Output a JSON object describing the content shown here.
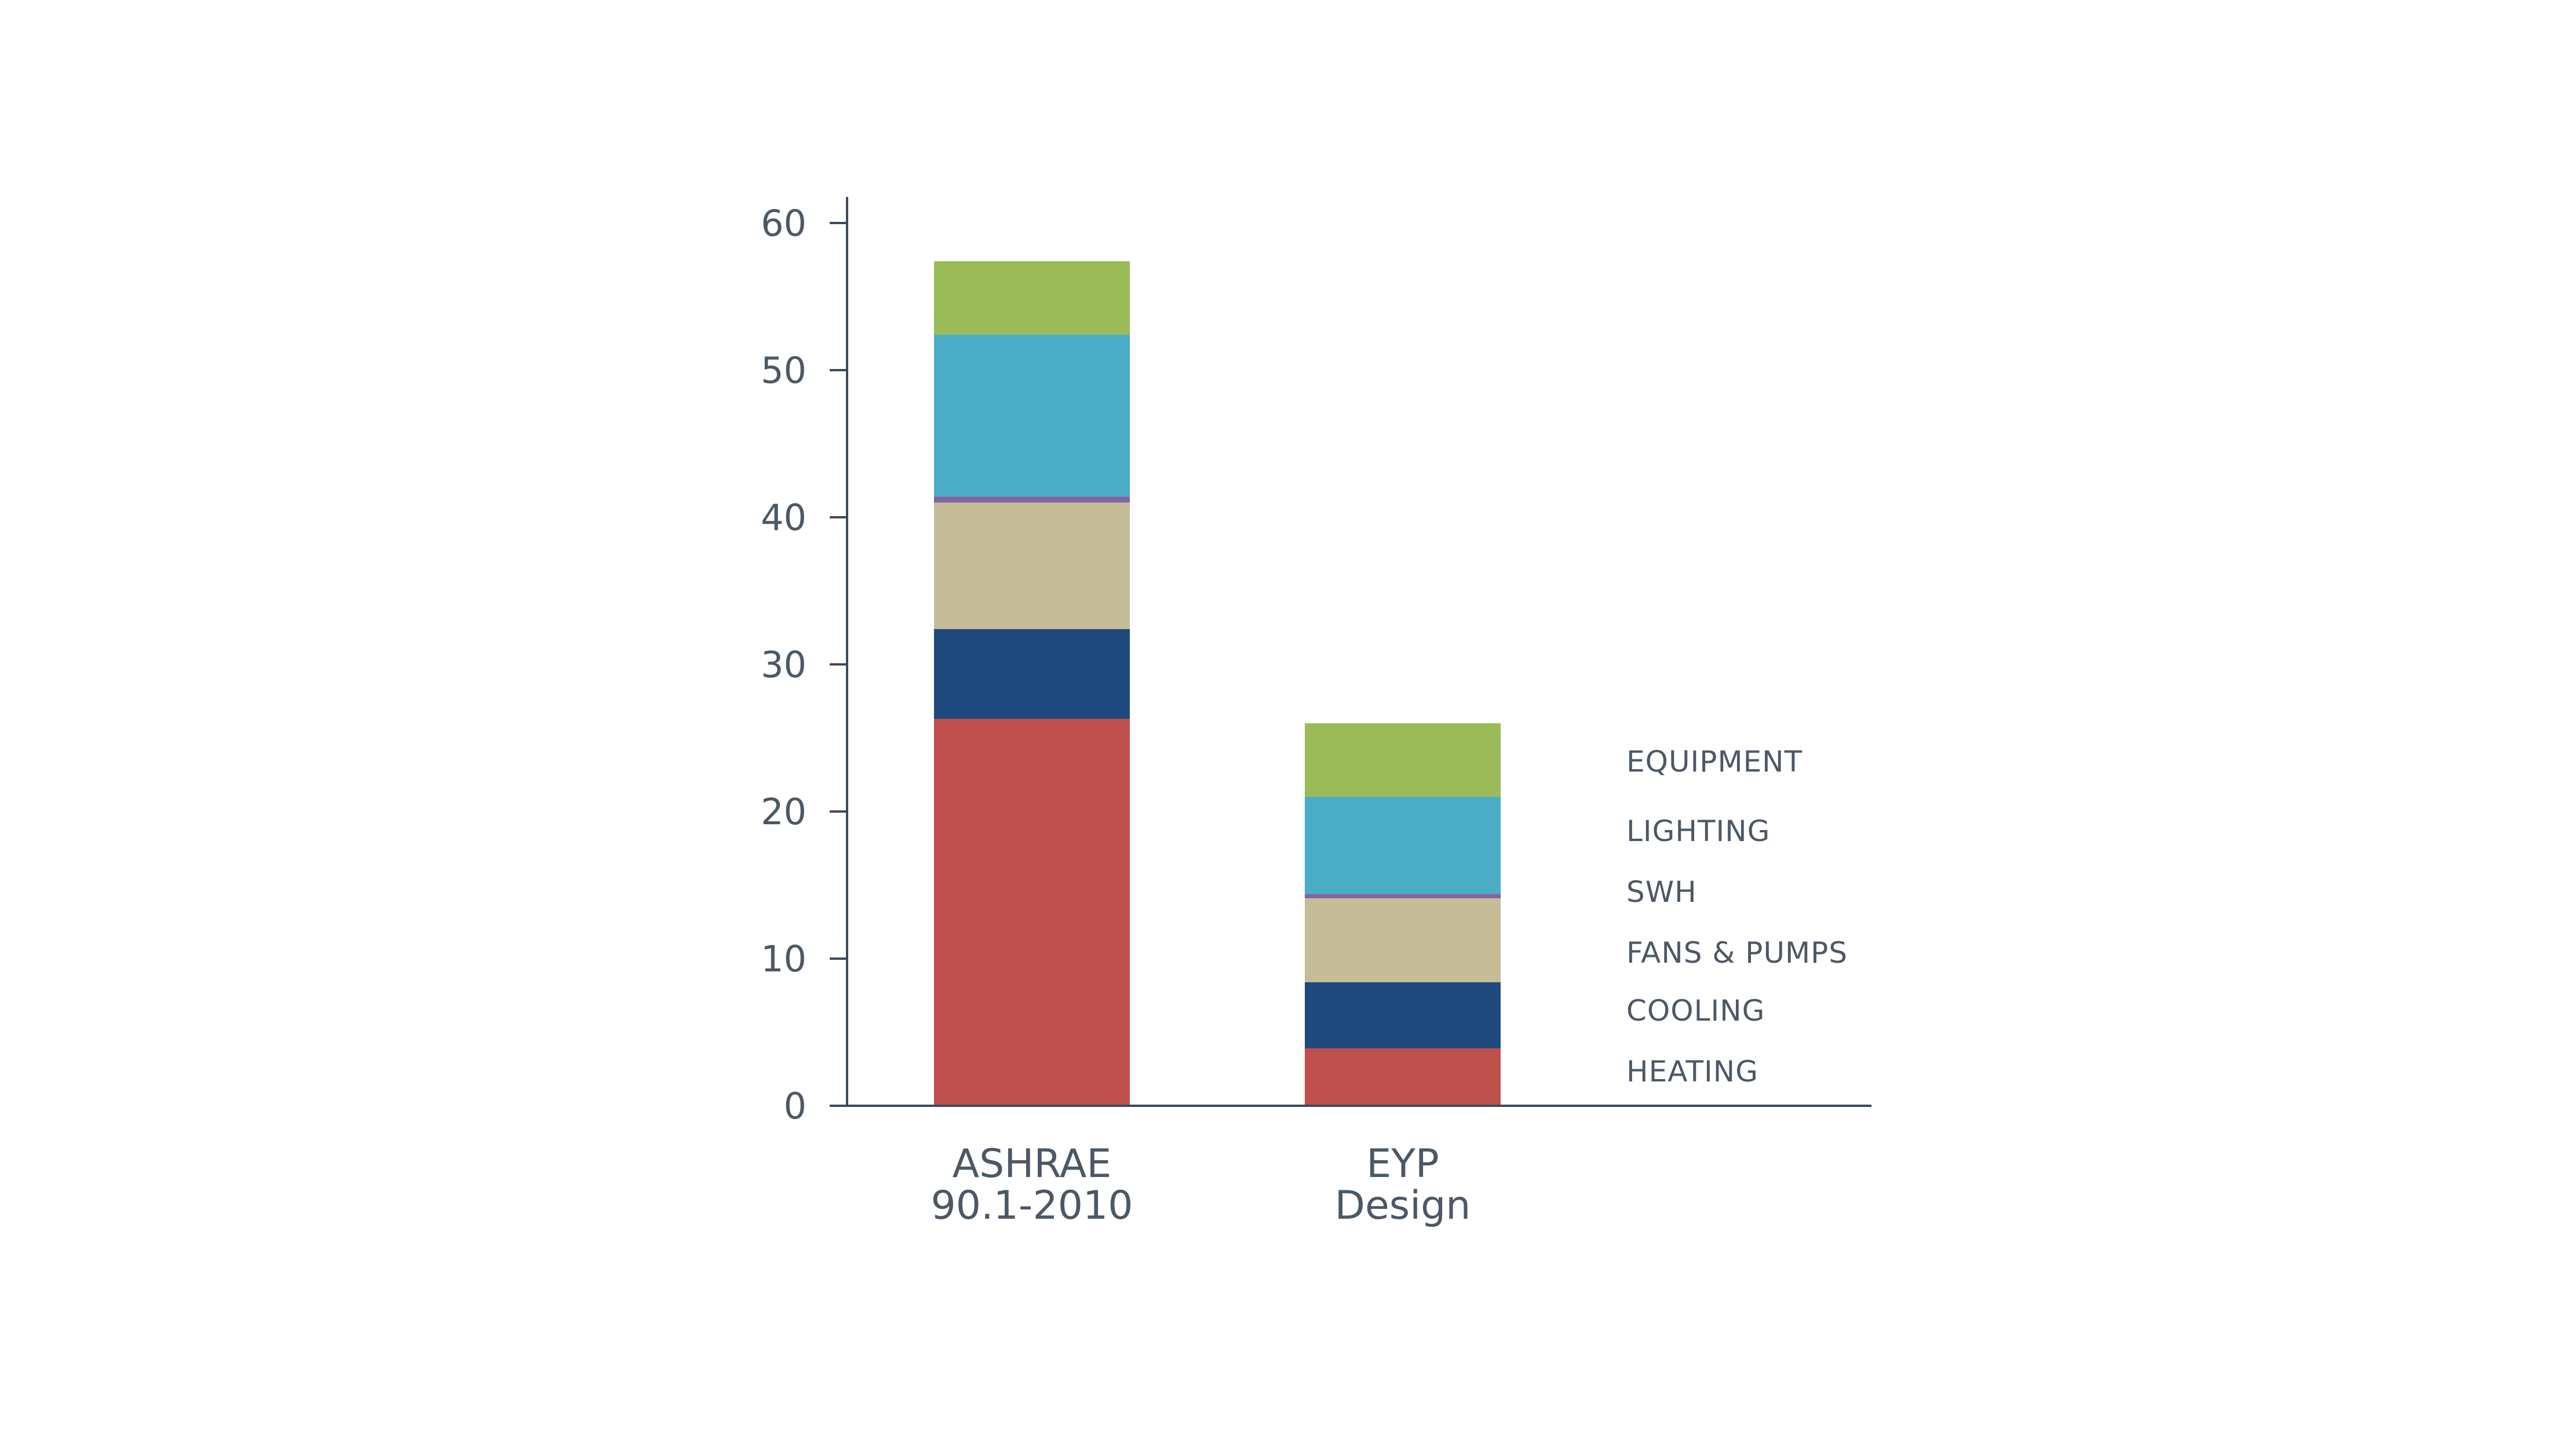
{
  "chart_data": {
    "type": "bar",
    "stacked": true,
    "categories": [
      [
        "ASHRAE",
        "90.1-2010"
      ],
      [
        "EYP",
        "Design"
      ]
    ],
    "series": [
      {
        "name": "HEATING",
        "color": "#c0504d",
        "values": [
          26.3,
          3.9
        ]
      },
      {
        "name": "COOLING",
        "color": "#1f497d",
        "values": [
          6.1,
          4.5
        ]
      },
      {
        "name": "FANS & PUMPS",
        "color": "#c4bd97",
        "values": [
          8.6,
          5.7
        ]
      },
      {
        "name": "SWH",
        "color": "#8064a2",
        "values": [
          0.4,
          0.3
        ]
      },
      {
        "name": "LIGHTING",
        "color": "#4bacc6",
        "values": [
          11.0,
          6.6
        ]
      },
      {
        "name": "EQUIPMENT",
        "color": "#9bbb59",
        "values": [
          5.0,
          5.0
        ]
      }
    ],
    "ylim": [
      0,
      62
    ],
    "yticks": [
      0,
      10,
      20,
      30,
      40,
      50,
      60
    ],
    "title": "",
    "xlabel": "",
    "ylabel": "",
    "grid": false,
    "legend_placement": "right, labels stacked alongside second bar",
    "axis_color": "#3d4a5a",
    "text_color": "#4d5866"
  }
}
